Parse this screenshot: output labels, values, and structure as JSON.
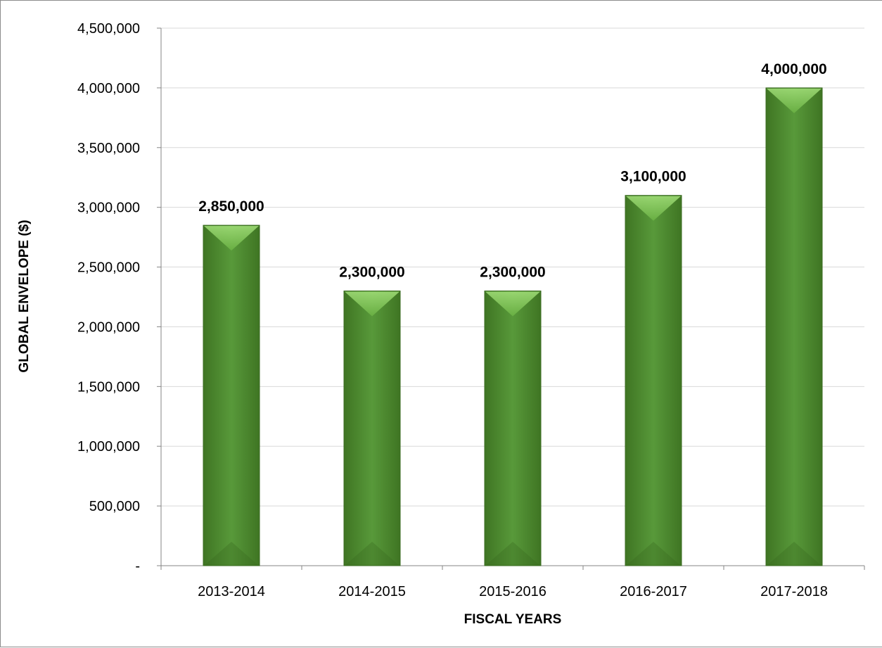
{
  "chart_data": {
    "type": "bar",
    "title": "",
    "xlabel": "FISCAL YEARS",
    "ylabel": "GLOBAL ENVELOPE ($)",
    "categories": [
      "2013-2014",
      "2014-2015",
      "2015-2016",
      "2016-2017",
      "2017-2018"
    ],
    "values": [
      2850000,
      2300000,
      2300000,
      3100000,
      4000000
    ],
    "data_labels": [
      "2,850,000",
      "2,300,000",
      "2,300,000",
      "3,100,000",
      "4,000,000"
    ],
    "ylim": [
      0,
      4500000
    ],
    "yticks": [
      0,
      500000,
      1000000,
      1500000,
      2000000,
      2500000,
      3000000,
      3500000,
      4000000,
      4500000
    ],
    "ytick_labels": [
      "-",
      "500,000",
      "1,000,000",
      "1,500,000",
      "2,000,000",
      "2,500,000",
      "3,000,000",
      "3,500,000",
      "4,000,000",
      "4,500,000"
    ],
    "grid": true,
    "legend": "none",
    "bar_color": "#4e8a2e",
    "bar_highlight_color": "#8ccf5a"
  }
}
